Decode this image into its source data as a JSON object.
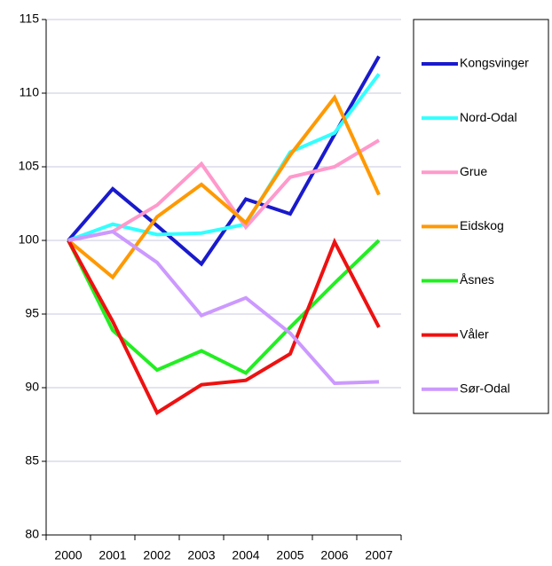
{
  "chart_data": {
    "type": "line",
    "categories": [
      "2000",
      "2001",
      "2002",
      "2003",
      "2004",
      "2005",
      "2006",
      "2007"
    ],
    "series": [
      {
        "name": "Kongsvinger",
        "color": "#1a1acc",
        "values": [
          100,
          103.5,
          101,
          98.4,
          102.8,
          101.8,
          107.2,
          112.5
        ]
      },
      {
        "name": "Nord-Odal",
        "color": "#33ffff",
        "values": [
          100,
          101.1,
          100.4,
          100.5,
          101.1,
          106,
          107.3,
          111.3
        ]
      },
      {
        "name": "Grue",
        "color": "#ff99cc",
        "values": [
          100,
          100.6,
          102.4,
          105.2,
          100.9,
          104.3,
          105,
          106.8
        ]
      },
      {
        "name": "Eidskog",
        "color": "#ff9900",
        "values": [
          100,
          97.5,
          101.6,
          103.8,
          101.2,
          105.8,
          109.7,
          103.1
        ]
      },
      {
        "name": "Åsnes",
        "color": "#22ee22",
        "values": [
          100,
          93.9,
          91.2,
          92.5,
          91,
          94.1,
          97.1,
          100
        ]
      },
      {
        "name": "Våler",
        "color": "#ee1111",
        "values": [
          100,
          94.5,
          88.3,
          90.2,
          90.5,
          92.3,
          99.9,
          94.1
        ]
      },
      {
        "name": "Sør-Odal",
        "color": "#cc99ff",
        "values": [
          100,
          100.6,
          98.5,
          94.9,
          96.1,
          93.7,
          90.3,
          90.4
        ]
      }
    ],
    "ylim": [
      80,
      115
    ],
    "yticks": [
      80,
      85,
      90,
      95,
      100,
      105,
      110,
      115
    ],
    "grid": true,
    "legend": "right"
  }
}
